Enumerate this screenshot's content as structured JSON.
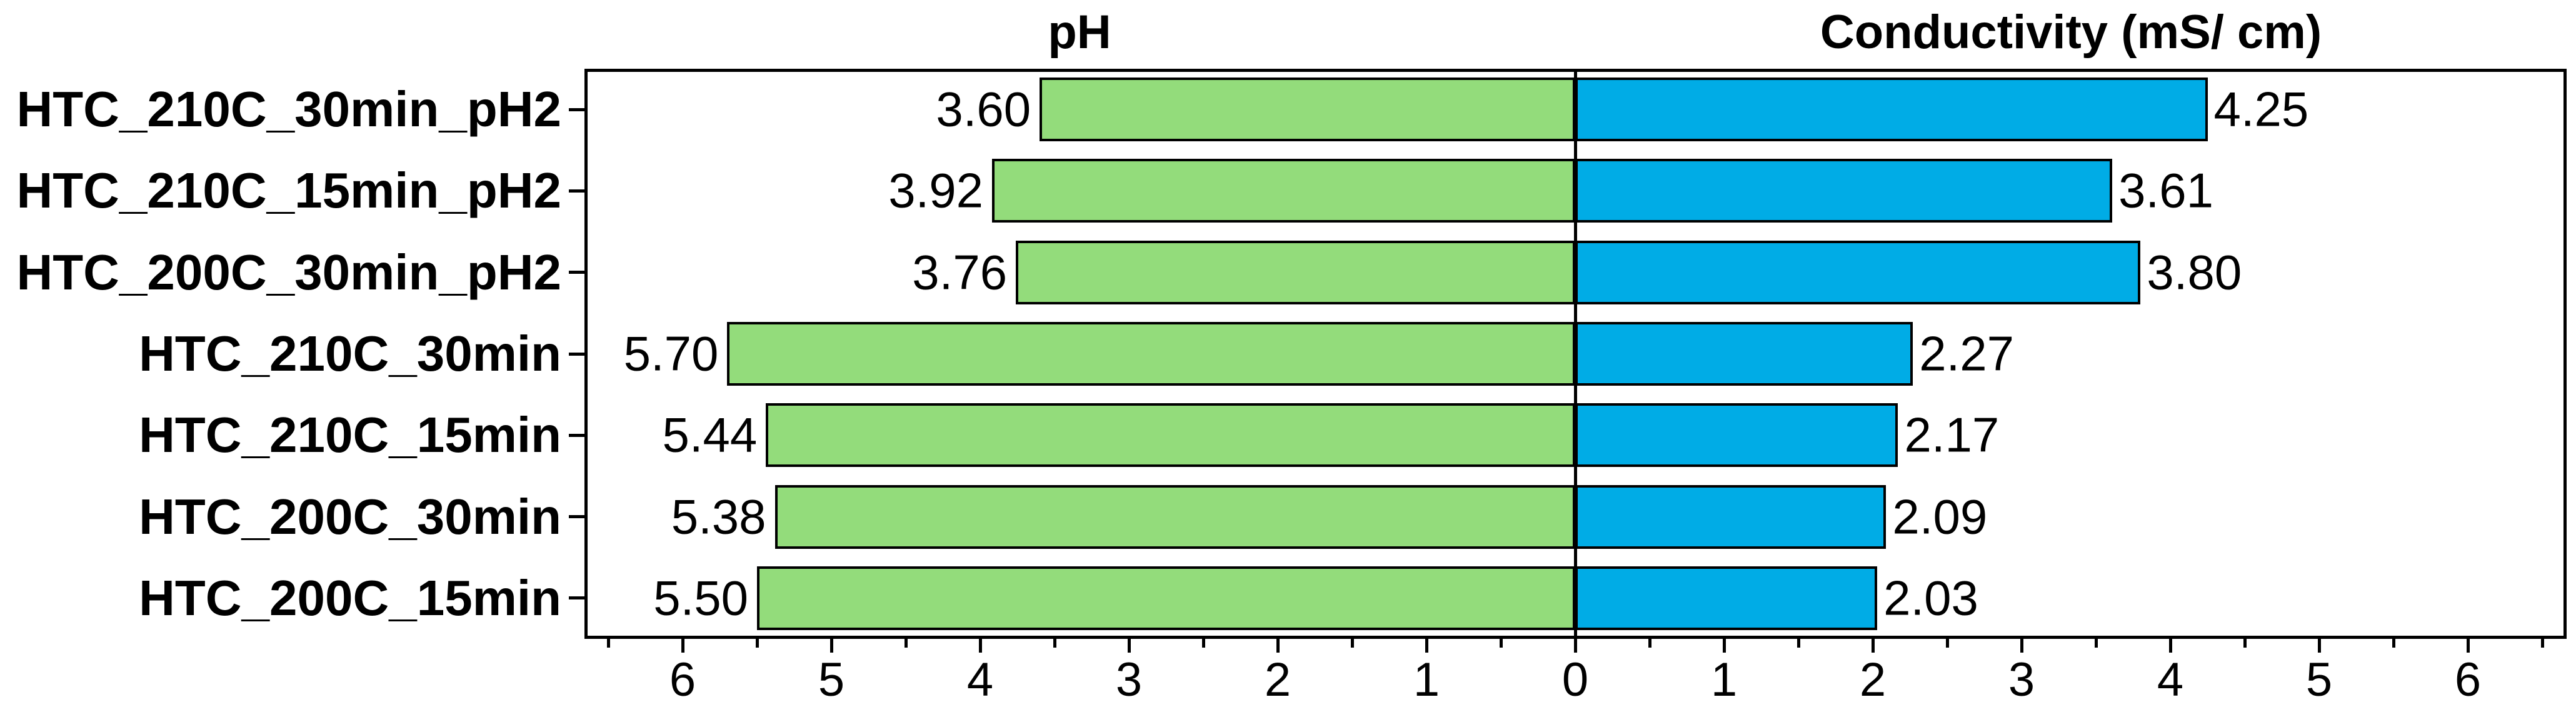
{
  "chart_data": {
    "type": "bar",
    "variant": "diverging-horizontal",
    "titles": {
      "left": "pH",
      "right": "Conductivity (mS/ cm)"
    },
    "categories": [
      "HTC_210C_30min_pH2",
      "HTC_210C_15min_pH2",
      "HTC_200C_30min_pH2",
      "HTC_210C_30min",
      "HTC_210C_15min",
      "HTC_200C_30min",
      "HTC_200C_15min"
    ],
    "series": [
      {
        "name": "pH",
        "side": "left",
        "color": "#93DC7B",
        "values": [
          3.6,
          3.92,
          3.76,
          5.7,
          5.44,
          5.38,
          5.5
        ],
        "labels": [
          "3.60",
          "3.92",
          "3.76",
          "5.70",
          "5.44",
          "5.38",
          "5.50"
        ]
      },
      {
        "name": "Conductivity (mS/ cm)",
        "side": "right",
        "color": "#00ACE6",
        "values": [
          4.25,
          3.61,
          3.8,
          2.27,
          2.17,
          2.09,
          2.03
        ],
        "labels": [
          "4.25",
          "3.61",
          "3.80",
          "2.27",
          "2.17",
          "2.09",
          "2.03"
        ]
      }
    ],
    "axis": {
      "xlim": [
        -6.66,
        6.66
      ],
      "minor_step": 0.5,
      "major_ticks": [
        {
          "x": -6,
          "label": "6"
        },
        {
          "x": -5,
          "label": "5"
        },
        {
          "x": -4,
          "label": "4"
        },
        {
          "x": -3,
          "label": "3"
        },
        {
          "x": -2,
          "label": "2"
        },
        {
          "x": -1,
          "label": "1"
        },
        {
          "x": 0,
          "label": "0"
        },
        {
          "x": 1,
          "label": "1"
        },
        {
          "x": 2,
          "label": "2"
        },
        {
          "x": 3,
          "label": "3"
        },
        {
          "x": 4,
          "label": "4"
        },
        {
          "x": 5,
          "label": "5"
        },
        {
          "x": 6,
          "label": "6"
        }
      ],
      "grid": false,
      "legend": "none"
    },
    "colors": {
      "bar_border": "#000000",
      "axis": "#000000",
      "background": "#ffffff"
    }
  }
}
